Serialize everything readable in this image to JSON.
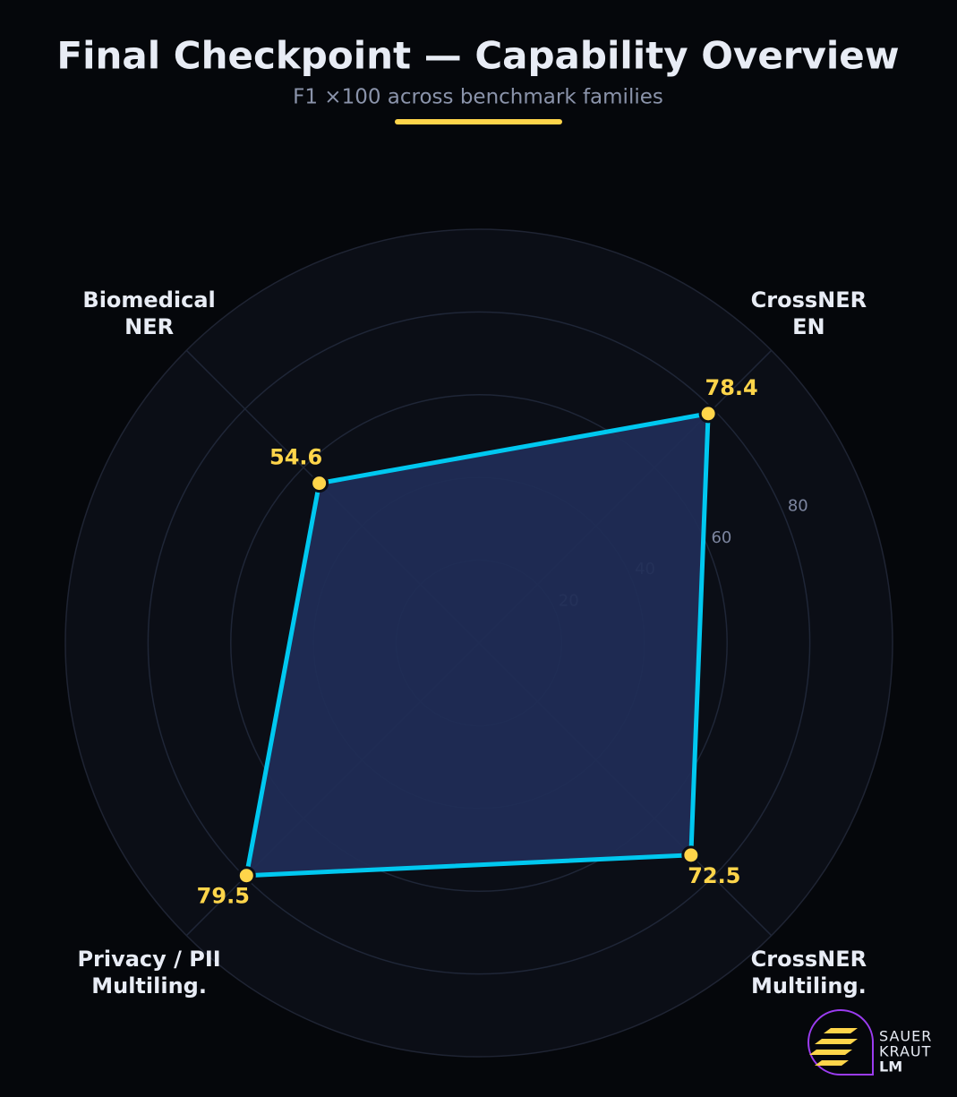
{
  "chart_data": {
    "type": "radar",
    "title": "Final Checkpoint — Capability Overview",
    "subtitle": "F1 ×100 across benchmark families",
    "categories": [
      "CrossNER\nEN",
      "CrossNER\nMultiling.",
      "Privacy / PII\nMultiling.",
      "Biomedical\nNER"
    ],
    "values": [
      78.4,
      72.5,
      79.5,
      54.6
    ],
    "color": "#00c8f0",
    "fill": "#202c55",
    "point_color": "#ffd54a",
    "rlim": [
      0,
      100
    ],
    "rticks": [
      20,
      40,
      60,
      80
    ],
    "grid": true
  },
  "brand": {
    "lines": [
      "SAUER",
      "KRAUT",
      "LM"
    ]
  }
}
